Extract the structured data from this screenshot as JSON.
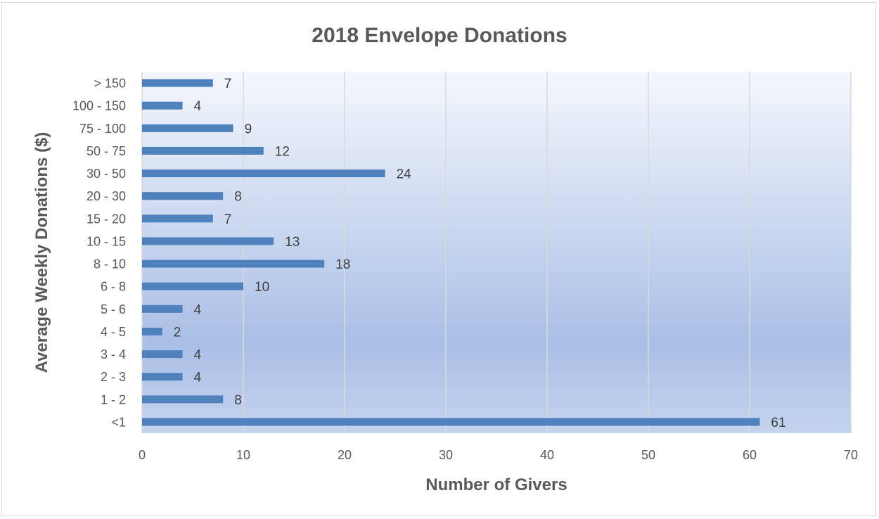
{
  "chart_data": {
    "type": "bar",
    "orientation": "horizontal",
    "title": "2018 Envelope Donations",
    "xlabel": "Number of Givers",
    "ylabel": "Average Weekly Donations ($)",
    "categories": [
      "<1",
      "1 - 2",
      "2 - 3",
      "3 - 4",
      "4 - 5",
      "5 - 6",
      "6 - 8",
      "8 - 10",
      "10 - 15",
      "15 - 20",
      "20 - 30",
      "30 - 50",
      "50 - 75",
      "75 - 100",
      "100 - 150",
      "> 150"
    ],
    "values": [
      61,
      8,
      4,
      4,
      2,
      4,
      10,
      18,
      13,
      7,
      8,
      24,
      12,
      9,
      4,
      7
    ],
    "xlim": [
      0,
      70
    ],
    "xticks": [
      0,
      10,
      20,
      30,
      40,
      50,
      60,
      70
    ],
    "grid": true,
    "bar_color": "#4f81bd",
    "background_gradient": [
      "#f4f7fc",
      "#aabfe6"
    ]
  }
}
